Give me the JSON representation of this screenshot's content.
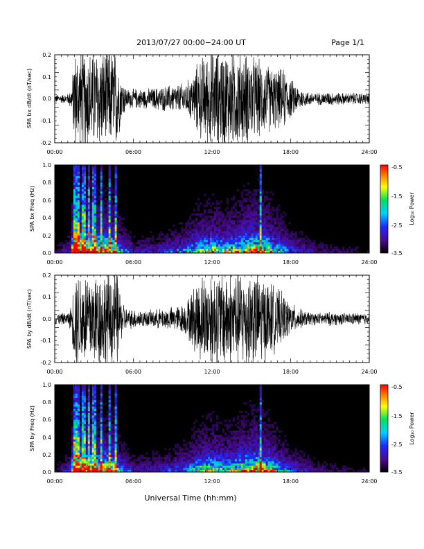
{
  "header": {
    "title": "2013/07/27  00:00−24:00 UT",
    "page_label": "Page 1/1"
  },
  "footer": {
    "xlabel": "Universal Time (hh:mm)"
  },
  "colors": {
    "waveform": "#000000",
    "spectrogram_bg": "#000000",
    "colormap": [
      "#000000",
      "#4a0a8c",
      "#2028ff",
      "#00d0ff",
      "#00e060",
      "#ffff00",
      "#ff8000",
      "#ff0000"
    ]
  },
  "chart_data": [
    {
      "type": "line",
      "ylabel": "SPA bx dB/dt (nT/sec)",
      "xlim": [
        0,
        24
      ],
      "ylim": [
        -0.2,
        0.2
      ],
      "x_ticks": [
        "00:00",
        "06:00",
        "12:00",
        "18:00",
        "24:00"
      ],
      "y_ticks": [
        "-0.2",
        "-0.1",
        "0.0",
        "0.1",
        "0.2"
      ],
      "envelope": {
        "x_hours": [
          0,
          1,
          1.3,
          1.5,
          2,
          3,
          4,
          4.8,
          5,
          5.5,
          6,
          7,
          8,
          9,
          10,
          10.5,
          11,
          12,
          13,
          14,
          15,
          16,
          17,
          17.5,
          18,
          19,
          20,
          21,
          22,
          23,
          24
        ],
        "amplitude": [
          0.02,
          0.025,
          0.06,
          0.25,
          0.25,
          0.25,
          0.25,
          0.25,
          0.13,
          0.05,
          0.05,
          0.05,
          0.06,
          0.07,
          0.08,
          0.12,
          0.2,
          0.25,
          0.25,
          0.25,
          0.22,
          0.18,
          0.15,
          0.15,
          0.1,
          0.04,
          0.03,
          0.035,
          0.03,
          0.03,
          0.03
        ]
      }
    },
    {
      "type": "heatmap",
      "ylabel": "SPA bx Freq (Hz)",
      "xlim": [
        0,
        24
      ],
      "ylim": [
        0,
        1.0
      ],
      "x_ticks": [
        "00:00",
        "06:00",
        "12:00",
        "18:00",
        "24:00"
      ],
      "y_ticks": [
        "0.0",
        "0.2",
        "0.4",
        "0.6",
        "0.8",
        "1.0"
      ],
      "colorbar": {
        "label": "Log₁₀ Power",
        "range": [
          -3.5,
          -0.5
        ],
        "ticks": [
          "-0.5",
          "-1.5",
          "-2.5",
          "-3.5"
        ]
      }
    },
    {
      "type": "line",
      "ylabel": "SPA by dB/dt (nT/sec)",
      "xlim": [
        0,
        24
      ],
      "ylim": [
        -0.2,
        0.2
      ],
      "x_ticks": [
        "00:00",
        "06:00",
        "12:00",
        "18:00",
        "24:00"
      ],
      "y_ticks": [
        "-0.2",
        "-0.1",
        "0.0",
        "0.1",
        "0.2"
      ],
      "envelope": {
        "x_hours": [
          0,
          1,
          1.3,
          1.5,
          2,
          3,
          4,
          4.8,
          5,
          5.5,
          6,
          7,
          8,
          9,
          10,
          10.5,
          11,
          12,
          13,
          14,
          15,
          16,
          17,
          17.5,
          18,
          19,
          20,
          21,
          22,
          23,
          24
        ],
        "amplitude": [
          0.03,
          0.03,
          0.07,
          0.25,
          0.25,
          0.25,
          0.25,
          0.25,
          0.12,
          0.05,
          0.05,
          0.04,
          0.05,
          0.06,
          0.08,
          0.15,
          0.22,
          0.25,
          0.25,
          0.25,
          0.25,
          0.22,
          0.15,
          0.12,
          0.08,
          0.04,
          0.03,
          0.035,
          0.03,
          0.03,
          0.03
        ]
      }
    },
    {
      "type": "heatmap",
      "ylabel": "SPA by Freq (Hz)",
      "xlim": [
        0,
        24
      ],
      "ylim": [
        0,
        1.0
      ],
      "x_ticks": [
        "00:00",
        "06:00",
        "12:00",
        "18:00",
        "24:00"
      ],
      "y_ticks": [
        "0.0",
        "0.2",
        "0.4",
        "0.6",
        "0.8",
        "1.0"
      ],
      "colorbar": {
        "label": "Log₁₀ Power",
        "range": [
          -3.5,
          -0.5
        ],
        "ticks": [
          "-0.5",
          "-1.5",
          "-2.5",
          "-3.5"
        ]
      }
    }
  ]
}
